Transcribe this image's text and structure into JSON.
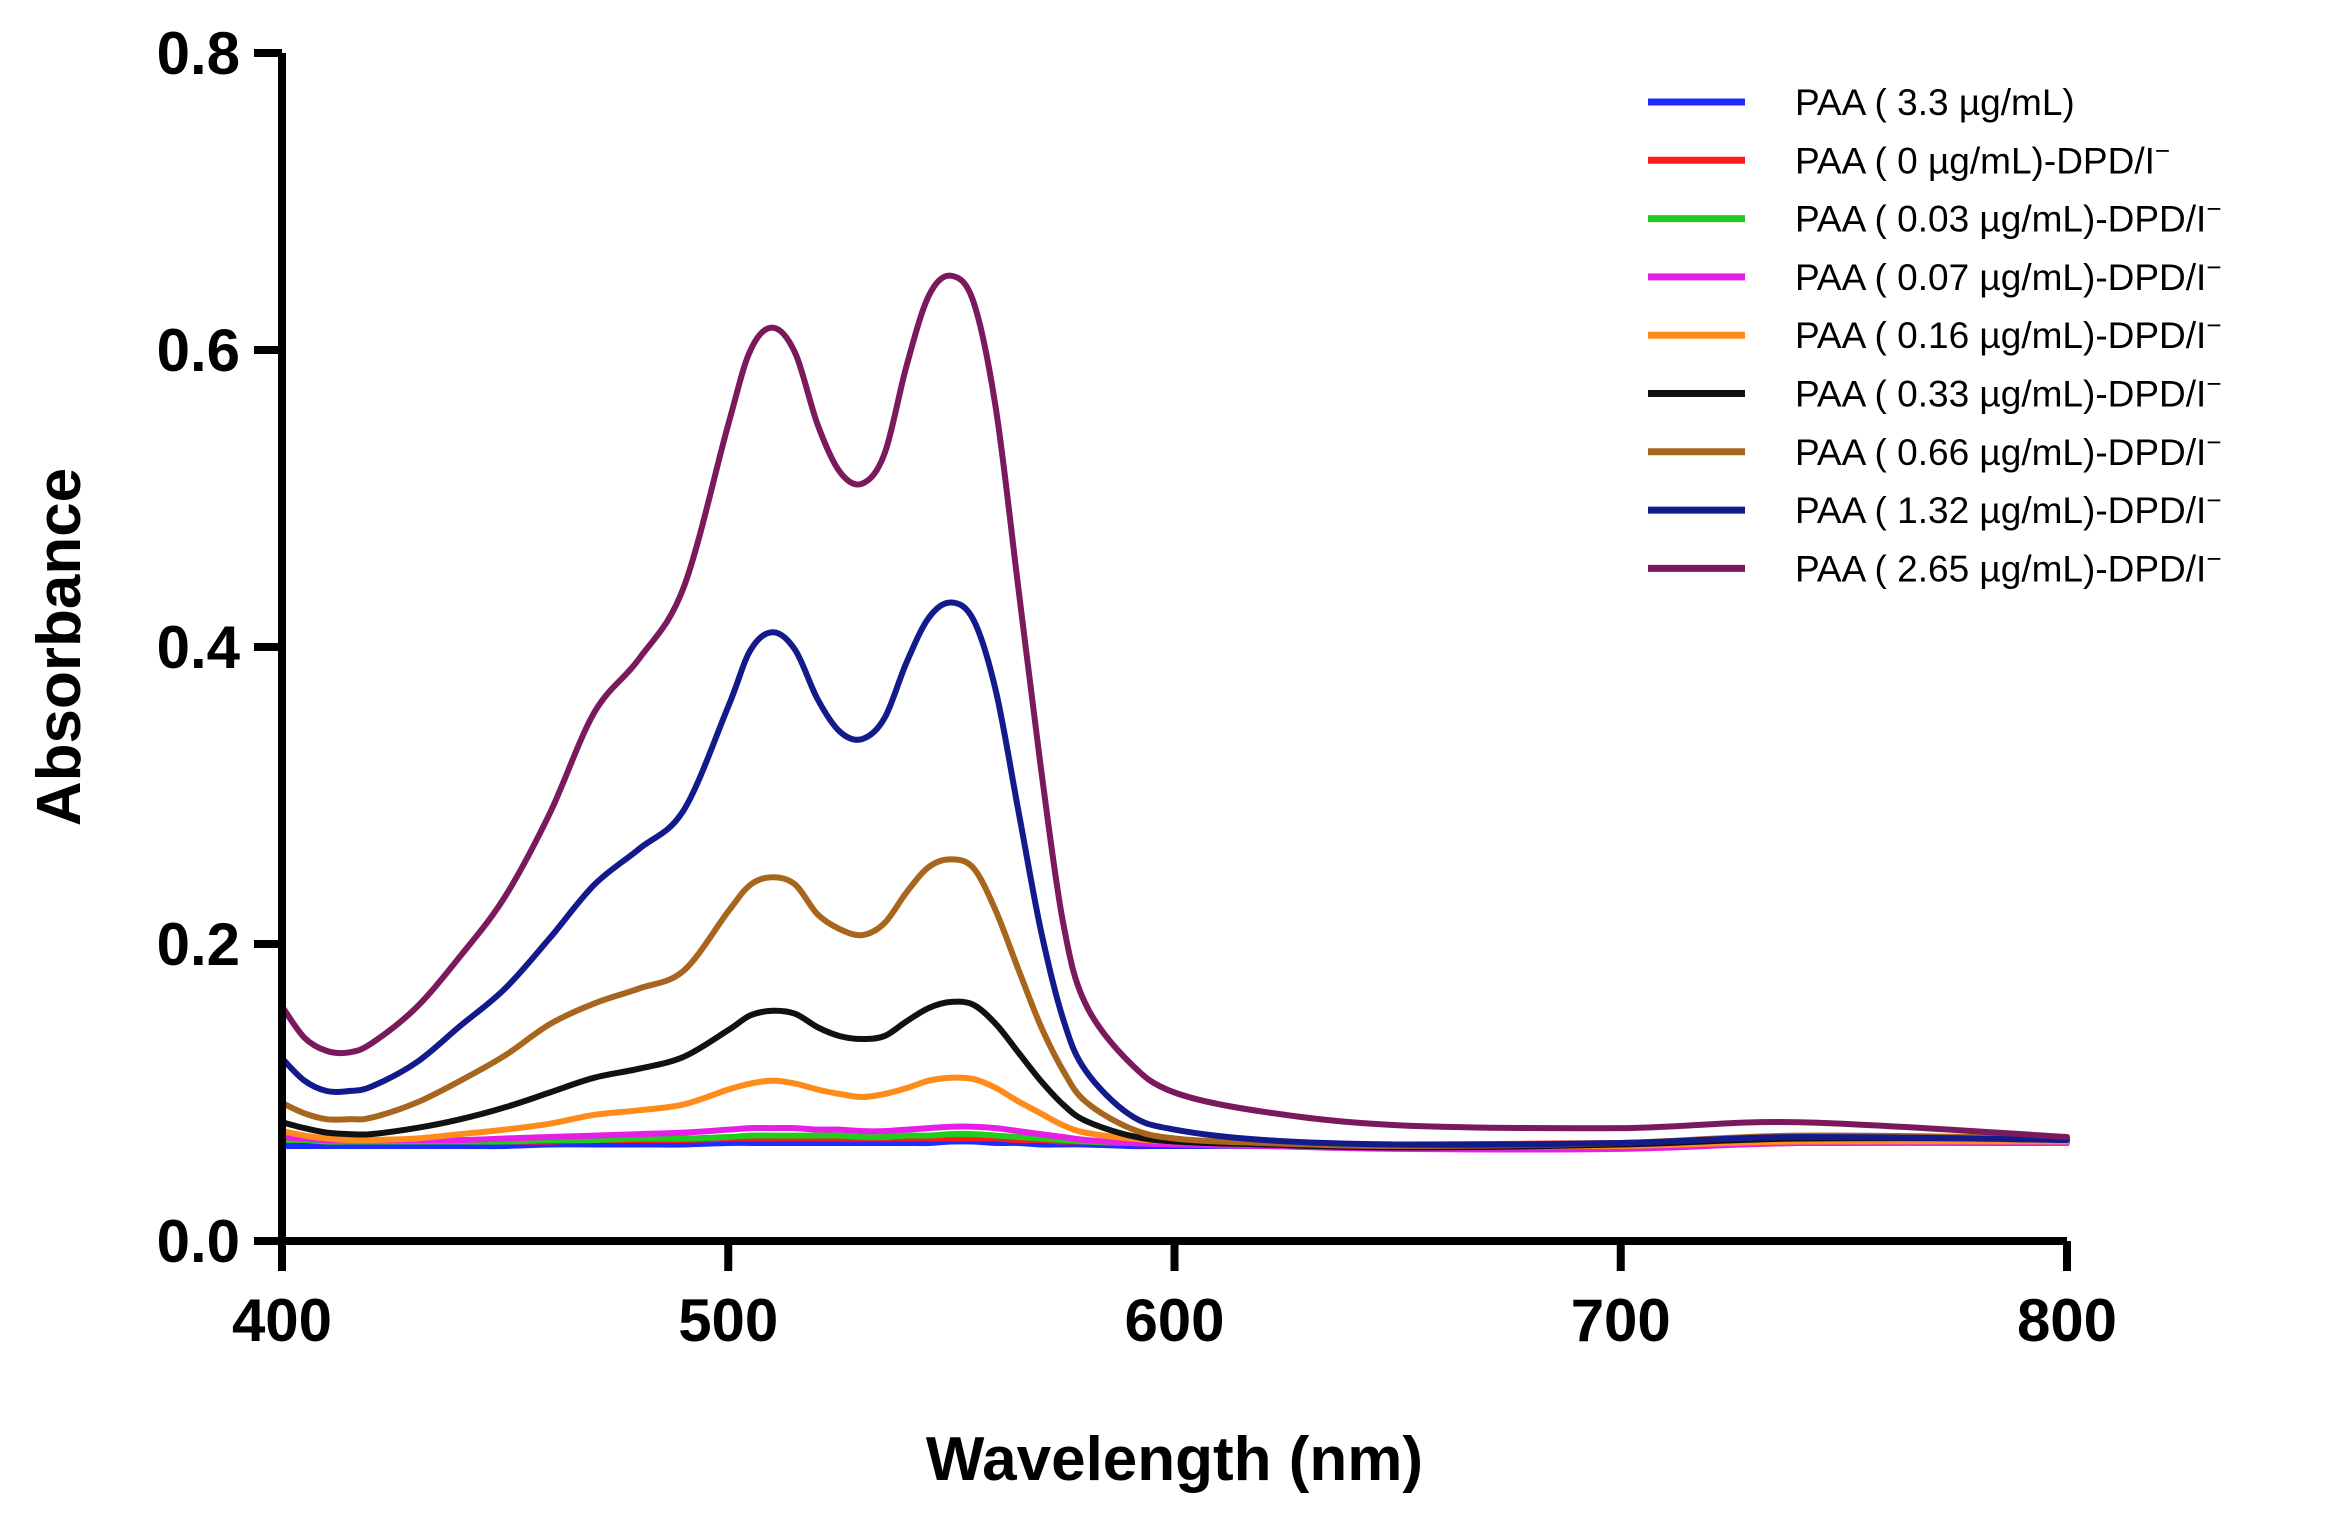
{
  "chart_data": {
    "type": "line",
    "title": "",
    "xlabel": "Wavelength (nm)",
    "ylabel": "Absorbance",
    "xlim": [
      400,
      800
    ],
    "ylim": [
      0.0,
      0.8
    ],
    "xticks": [
      400,
      500,
      600,
      700,
      800
    ],
    "xtick_labels": [
      "400",
      "500",
      "600",
      "700",
      "800"
    ],
    "yticks": [
      0.0,
      0.2,
      0.4,
      0.6,
      0.8
    ],
    "ytick_labels": [
      "0.0",
      "0.2",
      "0.4",
      "0.6",
      "0.8"
    ],
    "legend_position": "top-right",
    "x": [
      400,
      405,
      410,
      415,
      420,
      430,
      440,
      450,
      460,
      470,
      480,
      490,
      500,
      505,
      510,
      515,
      520,
      525,
      530,
      535,
      540,
      545,
      550,
      555,
      560,
      565,
      570,
      575,
      580,
      590,
      600,
      620,
      650,
      700,
      740,
      800
    ],
    "series": [
      {
        "name": "PAA ( 3.3 µg/mL)",
        "color": "#1f2cff",
        "values": [
          0.064,
          0.064,
          0.064,
          0.064,
          0.064,
          0.064,
          0.064,
          0.064,
          0.065,
          0.065,
          0.065,
          0.065,
          0.066,
          0.066,
          0.066,
          0.066,
          0.066,
          0.066,
          0.066,
          0.066,
          0.066,
          0.066,
          0.067,
          0.067,
          0.066,
          0.066,
          0.065,
          0.065,
          0.065,
          0.064,
          0.064,
          0.064,
          0.063,
          0.064,
          0.066,
          0.066
        ]
      },
      {
        "name": "PAA ( 0 µg/mL)-DPD/I",
        "color": "#ff1a1a",
        "values": [
          0.068,
          0.068,
          0.067,
          0.067,
          0.067,
          0.067,
          0.067,
          0.067,
          0.067,
          0.068,
          0.068,
          0.068,
          0.069,
          0.069,
          0.069,
          0.069,
          0.069,
          0.069,
          0.069,
          0.069,
          0.069,
          0.069,
          0.069,
          0.069,
          0.069,
          0.068,
          0.068,
          0.067,
          0.067,
          0.066,
          0.066,
          0.065,
          0.065,
          0.066,
          0.068,
          0.068
        ]
      },
      {
        "name": "PAA ( 0.03 µg/mL)-DPD/I",
        "color": "#1fcc1f",
        "values": [
          0.068,
          0.068,
          0.067,
          0.067,
          0.067,
          0.067,
          0.067,
          0.067,
          0.068,
          0.068,
          0.069,
          0.069,
          0.07,
          0.071,
          0.071,
          0.071,
          0.071,
          0.071,
          0.07,
          0.07,
          0.071,
          0.071,
          0.072,
          0.072,
          0.071,
          0.07,
          0.069,
          0.068,
          0.067,
          0.066,
          0.066,
          0.065,
          0.064,
          0.065,
          0.067,
          0.067
        ]
      },
      {
        "name": "PAA ( 0.07 µg/mL)-DPD/I",
        "color": "#e61ee6",
        "values": [
          0.07,
          0.069,
          0.068,
          0.068,
          0.068,
          0.068,
          0.068,
          0.069,
          0.07,
          0.071,
          0.072,
          0.073,
          0.075,
          0.076,
          0.076,
          0.076,
          0.075,
          0.075,
          0.074,
          0.074,
          0.075,
          0.076,
          0.077,
          0.077,
          0.076,
          0.074,
          0.072,
          0.07,
          0.068,
          0.066,
          0.065,
          0.064,
          0.062,
          0.062,
          0.066,
          0.066
        ]
      },
      {
        "name": "PAA ( 0.16 µg/mL)-DPD/I",
        "color": "#ff8c1a",
        "values": [
          0.074,
          0.071,
          0.069,
          0.068,
          0.068,
          0.069,
          0.072,
          0.075,
          0.079,
          0.085,
          0.088,
          0.092,
          0.102,
          0.106,
          0.108,
          0.106,
          0.102,
          0.099,
          0.097,
          0.099,
          0.103,
          0.108,
          0.11,
          0.109,
          0.103,
          0.094,
          0.086,
          0.078,
          0.073,
          0.069,
          0.067,
          0.065,
          0.064,
          0.064,
          0.067,
          0.067
        ]
      },
      {
        "name": "PAA ( 0.33 µg/mL)-DPD/I",
        "color": "#111111",
        "values": [
          0.08,
          0.076,
          0.073,
          0.072,
          0.072,
          0.076,
          0.082,
          0.09,
          0.1,
          0.11,
          0.116,
          0.124,
          0.142,
          0.152,
          0.155,
          0.153,
          0.144,
          0.138,
          0.136,
          0.138,
          0.148,
          0.157,
          0.161,
          0.159,
          0.146,
          0.127,
          0.108,
          0.092,
          0.081,
          0.071,
          0.067,
          0.065,
          0.063,
          0.065,
          0.069,
          0.069
        ]
      },
      {
        "name": "PAA ( 0.66 µg/mL)-DPD/I",
        "color": "#a8651e",
        "values": [
          0.093,
          0.086,
          0.082,
          0.082,
          0.083,
          0.093,
          0.108,
          0.125,
          0.146,
          0.16,
          0.17,
          0.182,
          0.222,
          0.24,
          0.245,
          0.24,
          0.22,
          0.21,
          0.206,
          0.214,
          0.235,
          0.252,
          0.257,
          0.251,
          0.222,
          0.183,
          0.145,
          0.115,
          0.094,
          0.076,
          0.069,
          0.066,
          0.064,
          0.066,
          0.071,
          0.069
        ]
      },
      {
        "name": "PAA ( 1.32 µg/mL)-DPD/I",
        "color": "#121a8c",
        "values": [
          0.123,
          0.108,
          0.101,
          0.101,
          0.104,
          0.12,
          0.145,
          0.17,
          0.204,
          0.24,
          0.264,
          0.29,
          0.36,
          0.398,
          0.41,
          0.398,
          0.365,
          0.343,
          0.338,
          0.352,
          0.39,
          0.42,
          0.43,
          0.418,
          0.37,
          0.29,
          0.21,
          0.15,
          0.115,
          0.085,
          0.075,
          0.068,
          0.065,
          0.066,
          0.07,
          0.068
        ]
      },
      {
        "name": "PAA ( 2.65 µg/mL)-DPD/I",
        "color": "#7a1a5c",
        "values": [
          0.158,
          0.137,
          0.128,
          0.127,
          0.133,
          0.157,
          0.192,
          0.232,
          0.288,
          0.356,
          0.392,
          0.44,
          0.55,
          0.6,
          0.615,
          0.598,
          0.55,
          0.518,
          0.51,
          0.53,
          0.59,
          0.637,
          0.65,
          0.632,
          0.56,
          0.44,
          0.32,
          0.215,
          0.16,
          0.12,
          0.1,
          0.087,
          0.078,
          0.076,
          0.08,
          0.07
        ]
      }
    ]
  }
}
